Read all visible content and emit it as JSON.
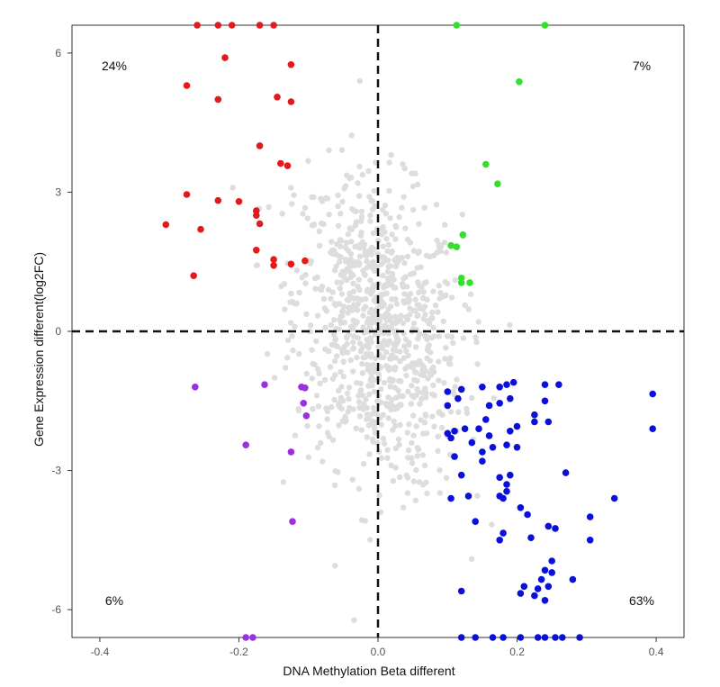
{
  "chart_data": {
    "type": "scatter",
    "title": "",
    "xlabel": "DNA Methylation Beta different",
    "ylabel": "Gene Expression different(log2FC)",
    "xlim": [
      -0.44,
      0.44
    ],
    "ylim": [
      -6.6,
      6.6
    ],
    "x_ticks": [
      -0.4,
      -0.2,
      0.0,
      0.2,
      0.4
    ],
    "x_tick_labels": [
      "-0.4",
      "-0.2",
      "0.0",
      "0.2",
      "0.4"
    ],
    "y_ticks": [
      -6,
      -3,
      0,
      3,
      6
    ],
    "y_tick_labels": [
      "-6",
      "-3",
      "0",
      "3",
      "6"
    ],
    "grid": false,
    "reference_lines": [
      {
        "axis": "x",
        "value": 0,
        "style": "dashed"
      },
      {
        "axis": "y",
        "value": 0,
        "style": "dashed"
      }
    ],
    "quadrant_labels": [
      {
        "quadrant": "top-left",
        "text": "24%"
      },
      {
        "quadrant": "top-right",
        "text": "7%"
      },
      {
        "quadrant": "bottom-left",
        "text": "6%"
      },
      {
        "quadrant": "bottom-right",
        "text": "63%"
      }
    ],
    "series": [
      {
        "color": "#e31a1c",
        "points": [
          [
            -0.26,
            6.6
          ],
          [
            -0.23,
            6.6
          ],
          [
            -0.21,
            6.6
          ],
          [
            -0.17,
            6.6
          ],
          [
            -0.15,
            6.6
          ],
          [
            -0.22,
            5.9
          ],
          [
            -0.125,
            5.75
          ],
          [
            -0.275,
            5.3
          ],
          [
            -0.23,
            5.0
          ],
          [
            -0.145,
            5.05
          ],
          [
            -0.125,
            4.95
          ],
          [
            -0.17,
            4.0
          ],
          [
            -0.14,
            3.62
          ],
          [
            -0.13,
            3.57
          ],
          [
            -0.275,
            2.95
          ],
          [
            -0.23,
            2.82
          ],
          [
            -0.2,
            2.8
          ],
          [
            -0.175,
            2.6
          ],
          [
            -0.175,
            2.5
          ],
          [
            -0.17,
            2.32
          ],
          [
            -0.305,
            2.3
          ],
          [
            -0.255,
            2.2
          ],
          [
            -0.175,
            1.75
          ],
          [
            -0.15,
            1.55
          ],
          [
            -0.15,
            1.42
          ],
          [
            -0.125,
            1.45
          ],
          [
            -0.105,
            1.52
          ],
          [
            -0.265,
            1.2
          ]
        ]
      },
      {
        "color": "#33e02a",
        "points": [
          [
            0.113,
            6.6
          ],
          [
            0.24,
            6.6
          ],
          [
            0.203,
            5.38
          ],
          [
            0.155,
            3.6
          ],
          [
            0.172,
            3.18
          ],
          [
            0.122,
            2.08
          ],
          [
            0.105,
            1.85
          ],
          [
            0.113,
            1.82
          ],
          [
            0.12,
            1.15
          ],
          [
            0.12,
            1.05
          ],
          [
            0.132,
            1.05
          ]
        ]
      },
      {
        "color": "#9b30e0",
        "points": [
          [
            -0.263,
            -1.2
          ],
          [
            -0.163,
            -1.15
          ],
          [
            -0.11,
            -1.2
          ],
          [
            -0.105,
            -1.22
          ],
          [
            -0.107,
            -1.55
          ],
          [
            -0.103,
            -1.82
          ],
          [
            -0.19,
            -2.45
          ],
          [
            -0.125,
            -2.6
          ],
          [
            -0.123,
            -4.1
          ],
          [
            -0.19,
            -6.6
          ],
          [
            -0.18,
            -6.6
          ]
        ]
      },
      {
        "color": "#0a10d8",
        "points": [
          [
            0.1,
            -1.3
          ],
          [
            0.12,
            -1.25
          ],
          [
            0.15,
            -1.2
          ],
          [
            0.175,
            -1.2
          ],
          [
            0.185,
            -1.15
          ],
          [
            0.195,
            -1.1
          ],
          [
            0.24,
            -1.15
          ],
          [
            0.26,
            -1.15
          ],
          [
            0.395,
            -1.35
          ],
          [
            0.1,
            -1.6
          ],
          [
            0.115,
            -1.45
          ],
          [
            0.16,
            -1.6
          ],
          [
            0.175,
            -1.55
          ],
          [
            0.19,
            -1.45
          ],
          [
            0.24,
            -1.5
          ],
          [
            0.225,
            -1.8
          ],
          [
            0.155,
            -1.9
          ],
          [
            0.225,
            -1.95
          ],
          [
            0.1,
            -2.2
          ],
          [
            0.11,
            -2.15
          ],
          [
            0.125,
            -2.1
          ],
          [
            0.145,
            -2.1
          ],
          [
            0.16,
            -2.25
          ],
          [
            0.19,
            -2.15
          ],
          [
            0.2,
            -2.05
          ],
          [
            0.245,
            -1.95
          ],
          [
            0.395,
            -2.1
          ],
          [
            0.105,
            -2.3
          ],
          [
            0.135,
            -2.4
          ],
          [
            0.165,
            -2.5
          ],
          [
            0.185,
            -2.45
          ],
          [
            0.2,
            -2.5
          ],
          [
            0.11,
            -2.7
          ],
          [
            0.15,
            -2.6
          ],
          [
            0.15,
            -2.8
          ],
          [
            0.12,
            -3.1
          ],
          [
            0.175,
            -3.15
          ],
          [
            0.19,
            -3.1
          ],
          [
            0.27,
            -3.05
          ],
          [
            0.185,
            -3.3
          ],
          [
            0.185,
            -3.45
          ],
          [
            0.13,
            -3.55
          ],
          [
            0.175,
            -3.55
          ],
          [
            0.18,
            -3.6
          ],
          [
            0.105,
            -3.6
          ],
          [
            0.34,
            -3.6
          ],
          [
            0.205,
            -3.8
          ],
          [
            0.215,
            -3.95
          ],
          [
            0.14,
            -4.1
          ],
          [
            0.245,
            -4.2
          ],
          [
            0.255,
            -4.25
          ],
          [
            0.305,
            -4.0
          ],
          [
            0.18,
            -4.35
          ],
          [
            0.175,
            -4.5
          ],
          [
            0.22,
            -4.45
          ],
          [
            0.305,
            -4.5
          ],
          [
            0.25,
            -4.95
          ],
          [
            0.24,
            -5.15
          ],
          [
            0.25,
            -5.2
          ],
          [
            0.235,
            -5.35
          ],
          [
            0.28,
            -5.35
          ],
          [
            0.21,
            -5.5
          ],
          [
            0.23,
            -5.55
          ],
          [
            0.245,
            -5.5
          ],
          [
            0.225,
            -5.7
          ],
          [
            0.24,
            -5.8
          ],
          [
            0.205,
            -5.65
          ],
          [
            0.12,
            -5.6
          ],
          [
            0.12,
            -6.6
          ],
          [
            0.14,
            -6.6
          ],
          [
            0.165,
            -6.6
          ],
          [
            0.18,
            -6.6
          ],
          [
            0.205,
            -6.6
          ],
          [
            0.23,
            -6.6
          ],
          [
            0.24,
            -6.6
          ],
          [
            0.255,
            -6.6
          ],
          [
            0.265,
            -6.6
          ],
          [
            0.29,
            -6.6
          ]
        ]
      }
    ],
    "background_series": {
      "color": "#dddddd",
      "description_points": "dense cloud of non-significant genes centered at origin",
      "count": 900,
      "spread_x": 0.06,
      "spread_y": 1.6
    }
  }
}
